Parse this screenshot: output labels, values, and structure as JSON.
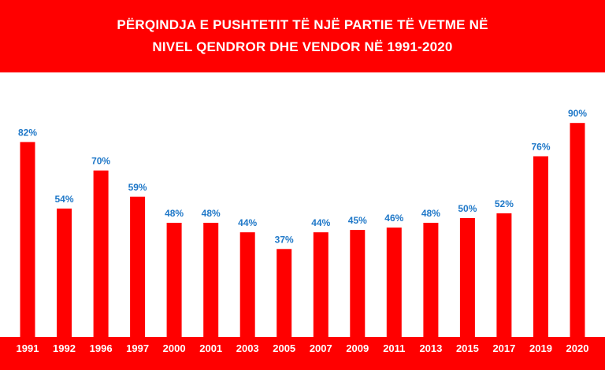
{
  "chart_data": {
    "type": "bar",
    "title_lines": [
      "PËRQINDJA E PUSHTETIT TË NJË PARTIE TË VETME NË",
      "NIVEL QENDROR DHE VENDOR NË 1991-2020"
    ],
    "categories": [
      "1991",
      "1992",
      "1996",
      "1997",
      "2000",
      "2001",
      "2003",
      "2005",
      "2007",
      "2009",
      "2011",
      "2013",
      "2015",
      "2017",
      "2019",
      "2020"
    ],
    "values": [
      82,
      54,
      70,
      59,
      48,
      48,
      44,
      37,
      44,
      45,
      46,
      48,
      50,
      52,
      76,
      90
    ],
    "data_labels": [
      "82%",
      "54%",
      "70%",
      "59%",
      "48%",
      "48%",
      "44%",
      "37%",
      "44%",
      "45%",
      "46%",
      "48%",
      "50%",
      "52%",
      "76%",
      "90%"
    ],
    "unit": "%",
    "ylim": [
      0,
      100
    ],
    "grid": false,
    "legend": "none",
    "colors": {
      "bar": "#ff0000",
      "data_label": "#1f78c8",
      "background_band": "#ff0000",
      "plot_background": "#ffffff",
      "title_text": "#ffffff",
      "category_text": "#ffffff"
    }
  }
}
